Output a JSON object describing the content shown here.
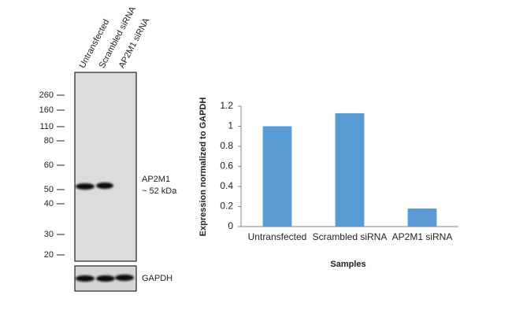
{
  "blot": {
    "lanes": [
      "Untransfected",
      "Scrambled siRNA",
      "AP2M1 siRNA"
    ],
    "markers": [
      260,
      160,
      110,
      80,
      60,
      50,
      40,
      30,
      20
    ],
    "band_label": "AP2M1",
    "band_size": "~ 52 kDa",
    "loading_label": "GAPDH"
  },
  "chart_data": {
    "type": "bar",
    "categories": [
      "Untransfected",
      "Scrambled siRNA",
      "AP2M1 siRNA"
    ],
    "values": [
      1.0,
      1.13,
      0.18
    ],
    "color": "#5b9bd5",
    "ylim": [
      0,
      1.2
    ],
    "yticks": [
      0,
      0.2,
      0.4,
      0.6,
      0.8,
      1,
      1.2
    ],
    "y_label": "Expression  normalized to GAPDH",
    "x_label": "Samples"
  }
}
